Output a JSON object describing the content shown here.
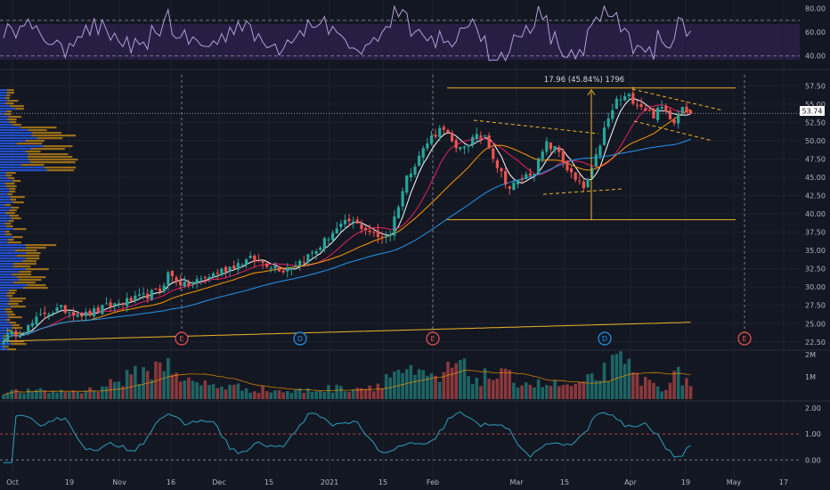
{
  "chart_data": {
    "type": "candlestick",
    "x_ticks": [
      "Oct",
      "19",
      "Nov",
      "16",
      "Dec",
      "15",
      "2021",
      "15",
      "Feb",
      "Mar",
      "15",
      "Apr",
      "19",
      "May",
      "17"
    ],
    "current_price": "53.74",
    "measure": {
      "label": "17.96 (45.84%) 1796",
      "from": 39.2,
      "to": 57.2
    },
    "panes": {
      "rsi": {
        "ticks": [
          "80.00",
          "60.00",
          "40.00"
        ],
        "ylim": [
          30,
          85
        ],
        "overbought": 70,
        "oversold": 30
      },
      "price": {
        "ticks": [
          "57.50",
          "55.00",
          "52.50",
          "50.00",
          "47.50",
          "45.00",
          "42.50",
          "40.00",
          "37.50",
          "35.00",
          "32.50",
          "30.00",
          "27.50",
          "25.00",
          "22.50"
        ],
        "ylim": [
          21.5,
          59
        ]
      },
      "volume": {
        "ticks": [
          "2M",
          "1M"
        ],
        "ylim": [
          0,
          2200000
        ]
      },
      "osc": {
        "ticks": [
          "2.00",
          "1.00",
          "0.00"
        ],
        "ylim": [
          -0.4,
          2.2
        ],
        "ref_line": 1.0
      }
    },
    "events": [
      {
        "label": "E",
        "date_index": 38,
        "kind": "earnings"
      },
      {
        "label": "D",
        "date_index": 64,
        "kind": "dividend"
      },
      {
        "label": "E",
        "date_index": 95,
        "kind": "earnings"
      },
      {
        "label": "D",
        "date_index": 133,
        "kind": "dividend"
      },
      {
        "label": "E",
        "date_index": 166,
        "kind": "earnings"
      }
    ],
    "colors": {
      "up": "#26a69a",
      "down": "#ef5350",
      "rsi": "#b39ddb",
      "ma_fast": "#ffffff",
      "ma_mid": "#e91e63",
      "ma_slow": "#ff9800",
      "ma_long": "#2196f3",
      "ma_200": "#f0b429",
      "osc": "#2a9fbc",
      "vp_up": "#2962ff",
      "vp_down": "#c68a15"
    },
    "price_keys": [
      [
        0,
        23.0
      ],
      [
        6,
        24.5
      ],
      [
        10,
        26.5
      ],
      [
        14,
        27.0
      ],
      [
        20,
        26.2
      ],
      [
        26,
        27.5
      ],
      [
        32,
        28.3
      ],
      [
        38,
        29.5
      ],
      [
        40,
        31.8
      ],
      [
        44,
        30.2
      ],
      [
        50,
        31.5
      ],
      [
        56,
        33.0
      ],
      [
        60,
        33.8
      ],
      [
        64,
        33.2
      ],
      [
        68,
        32.4
      ],
      [
        72,
        33.5
      ],
      [
        76,
        35.0
      ],
      [
        80,
        37.5
      ],
      [
        84,
        39.0
      ],
      [
        88,
        38.0
      ],
      [
        91,
        36.8
      ],
      [
        94,
        37.4
      ],
      [
        95,
        39.5
      ],
      [
        98,
        45.0
      ],
      [
        101,
        48.0
      ],
      [
        104,
        50.5
      ],
      [
        107,
        52.0
      ],
      [
        110,
        48.5
      ],
      [
        114,
        50.2
      ],
      [
        117,
        50.8
      ],
      [
        120,
        46.5
      ],
      [
        123,
        43.5
      ],
      [
        126,
        44.8
      ],
      [
        129,
        46.0
      ],
      [
        132,
        49.5
      ],
      [
        135,
        48.5
      ],
      [
        137,
        46.2
      ],
      [
        139,
        44.5
      ],
      [
        141,
        43.5
      ],
      [
        143,
        45.8
      ],
      [
        146,
        51.5
      ],
      [
        149,
        55.5
      ],
      [
        152,
        56.0
      ],
      [
        155,
        54.8
      ],
      [
        158,
        53.5
      ],
      [
        160,
        54.5
      ],
      [
        163,
        52.8
      ],
      [
        165,
        55.0
      ],
      [
        167,
        53.7
      ]
    ],
    "volume_keys": [
      [
        0,
        350000
      ],
      [
        20,
        380000
      ],
      [
        38,
        1500000
      ],
      [
        40,
        1900000
      ],
      [
        44,
        800000
      ],
      [
        60,
        500000
      ],
      [
        70,
        350000
      ],
      [
        80,
        500000
      ],
      [
        90,
        600000
      ],
      [
        96,
        1400000
      ],
      [
        100,
        1100000
      ],
      [
        106,
        900000
      ],
      [
        110,
        1700000
      ],
      [
        114,
        1000000
      ],
      [
        120,
        1100000
      ],
      [
        130,
        700000
      ],
      [
        140,
        600000
      ],
      [
        146,
        1300000
      ],
      [
        150,
        1700000
      ],
      [
        156,
        800000
      ],
      [
        160,
        600000
      ],
      [
        164,
        1100000
      ],
      [
        167,
        800000
      ]
    ]
  }
}
